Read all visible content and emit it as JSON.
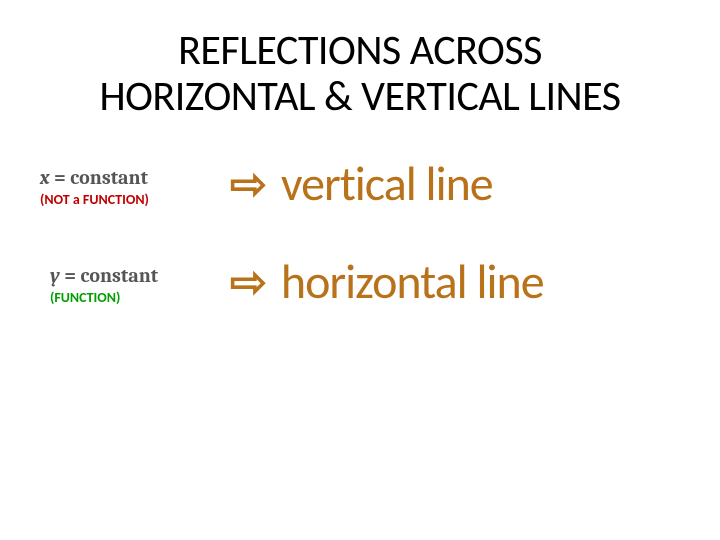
{
  "title_line1": "REFLECTIONS ACROSS",
  "title_line2": "HORIZONTAL & VERTICAL LINES",
  "row1": {
    "equation": "x = constant",
    "func_label": "(NOT a FUNCTION)",
    "arrow": "⇨",
    "line_text": "vertical line"
  },
  "row2": {
    "equation": "y = constant",
    "func_label": "(FUNCTION)",
    "arrow": "⇨",
    "line_text": "horizontal line"
  },
  "colors": {
    "title": "#000000",
    "equation": "#555555",
    "not_func": "#c00000",
    "is_func": "#00a000",
    "accent": "#b8721a",
    "background": "#ffffff"
  },
  "fontsizes": {
    "title": 42,
    "equation": 20,
    "func_label": 14,
    "arrow": 44,
    "line_text": 48
  }
}
